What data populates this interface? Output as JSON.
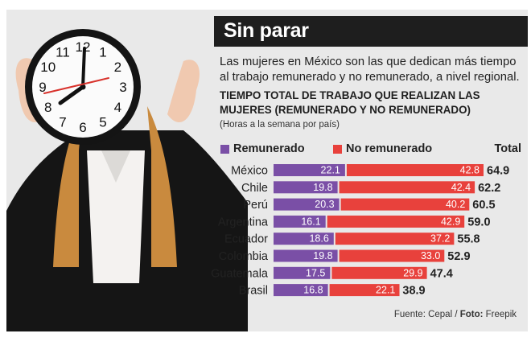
{
  "header": {
    "title": "Sin parar",
    "intro": "Las mujeres en México son las que dedican más tiempo al trabajo remunerado y no remunerado, a nivel regional.",
    "subtitle": "TIEMPO TOTAL DE TRABAJO QUE REALIZAN LAS MUJERES (REMUNERADO Y NO REMUNERADO)",
    "note": "(Horas a la semana por país)"
  },
  "legend": {
    "paid": "Remunerado",
    "unpaid": "No remunerado",
    "total": "Total"
  },
  "colors": {
    "paid": "#7a4fa6",
    "unpaid": "#e8413c",
    "title_bar": "#1e1e1e",
    "background": "#e9e9e9"
  },
  "source": {
    "prefix": "Fuente: Cepal / ",
    "photo_label": "Foto:",
    "photo_credit": " Freepik"
  },
  "chart_data": {
    "type": "bar",
    "orientation": "horizontal",
    "stacked": true,
    "title": "TIEMPO TOTAL DE TRABAJO QUE REALIZAN LAS MUJERES (REMUNERADO Y NO REMUNERADO)",
    "subtitle": "(Horas a la semana por país)",
    "categories": [
      "México",
      "Chile",
      "Perú",
      "Argentina",
      "Ecuador",
      "Colombia",
      "Guatemala",
      "Brasil"
    ],
    "series": [
      {
        "name": "Remunerado",
        "values": [
          22.1,
          19.8,
          20.3,
          16.1,
          18.6,
          19.8,
          17.5,
          16.8
        ]
      },
      {
        "name": "No remunerado",
        "values": [
          42.8,
          42.4,
          40.2,
          42.9,
          37.2,
          33.0,
          29.9,
          22.1
        ]
      }
    ],
    "totals": [
      64.9,
      62.2,
      60.5,
      59.0,
      55.8,
      52.9,
      47.4,
      38.9
    ],
    "total_label": "Total",
    "xlim": [
      0,
      64.9
    ],
    "grid": false,
    "legend_position": "top"
  }
}
